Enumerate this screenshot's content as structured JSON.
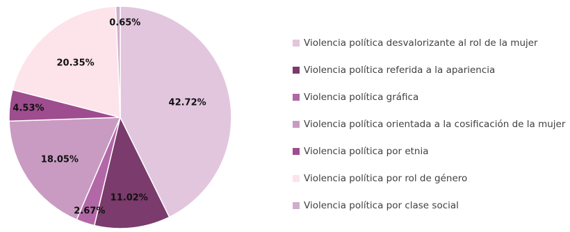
{
  "chart_data": {
    "type": "pie",
    "title": "",
    "legend_position": "right",
    "slices": [
      {
        "label": "Violencia política desvalorizante al rol de la mujer",
        "value": 42.72,
        "display": "42.72%",
        "color": "#e2c6de"
      },
      {
        "label": "Violencia política referida a la apariencia",
        "value": 11.02,
        "display": "11.02%",
        "color": "#7b3b6c"
      },
      {
        "label": "Violencia política gráfica",
        "value": 2.67,
        "display": "2.67%",
        "color": "#b268a6"
      },
      {
        "label": "Violencia política orientada a la cosificación de la mujer",
        "value": 18.05,
        "display": "18.05%",
        "color": "#c99bc2"
      },
      {
        "label": "Violencia política por etnia",
        "value": 4.53,
        "display": "4.53%",
        "color": "#9e4d8e"
      },
      {
        "label": "Violencia política por rol de género",
        "value": 20.35,
        "display": "20.35%",
        "color": "#fde3ea"
      },
      {
        "label": "Violencia política por clase social",
        "value": 0.65,
        "display": "0.65%",
        "color": "#d0aecb"
      }
    ]
  }
}
